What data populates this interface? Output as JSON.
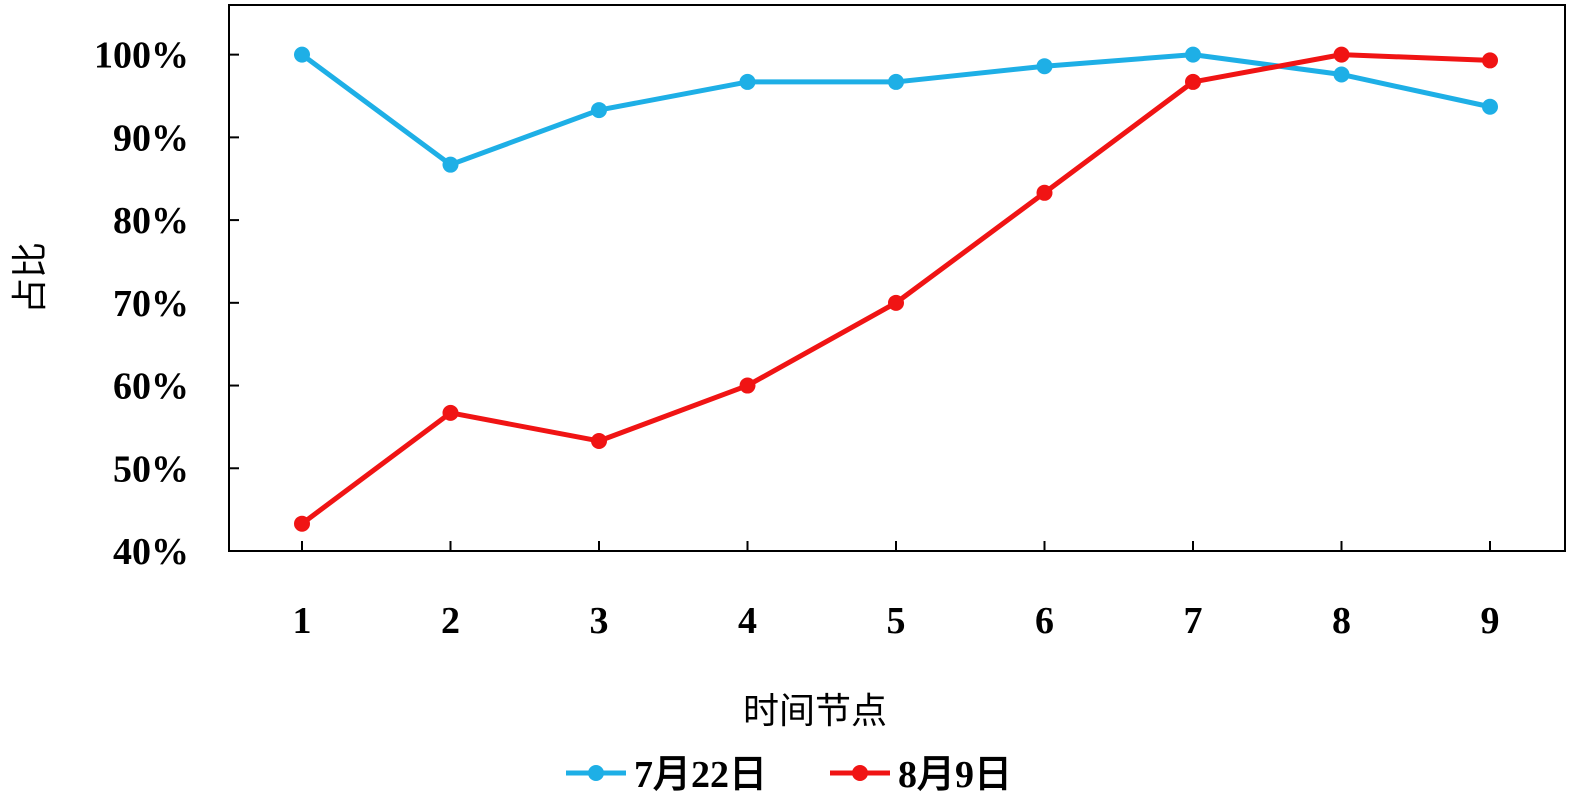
{
  "chart_data": {
    "type": "line",
    "xlabel": "时间节点",
    "ylabel": "占比",
    "x": [
      1,
      2,
      3,
      4,
      5,
      6,
      7,
      8,
      9
    ],
    "x_tick_labels": [
      "1",
      "2",
      "3",
      "4",
      "5",
      "6",
      "7",
      "8",
      "9"
    ],
    "ylim": [
      40,
      106
    ],
    "y_ticks": [
      40,
      50,
      60,
      70,
      80,
      90,
      100
    ],
    "y_tick_labels": [
      "40%",
      "50%",
      "60%",
      "70%",
      "80%",
      "90%",
      "100%"
    ],
    "grid": false,
    "legend_position": "bottom",
    "series": [
      {
        "name": "7月22日",
        "color": "#1EAFE6",
        "values": [
          100,
          86.7,
          93.3,
          96.7,
          96.7,
          98.6,
          100,
          97.6,
          93.7
        ]
      },
      {
        "name": "8月9日",
        "color": "#F01414",
        "values": [
          43.3,
          56.7,
          53.3,
          60,
          70,
          83.3,
          96.7,
          100,
          99.3
        ]
      }
    ]
  }
}
